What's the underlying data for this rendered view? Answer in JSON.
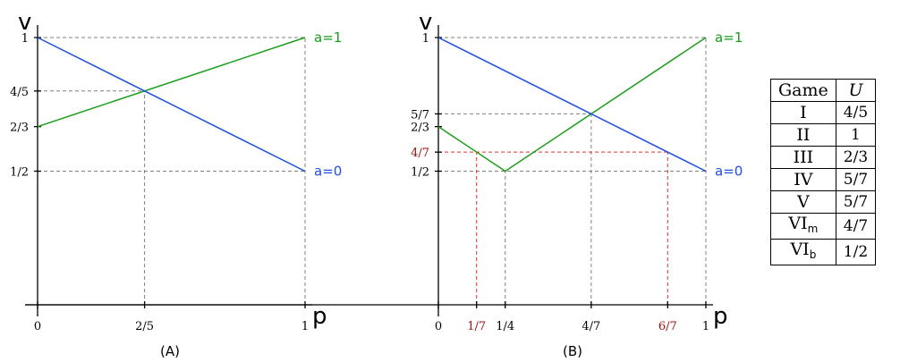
{
  "chart_data": [
    {
      "type": "line",
      "caption": "(A)",
      "xlabel": "p",
      "ylabel": "v",
      "xlim": [
        0,
        1
      ],
      "ylim": [
        0,
        1
      ],
      "xticks": [
        {
          "value": 0,
          "label": "0"
        },
        {
          "value": 0.4,
          "label": "2/5"
        },
        {
          "value": 1,
          "label": "1"
        }
      ],
      "yticks": [
        {
          "value": 1,
          "label": "1"
        },
        {
          "value": 0.8,
          "label": "4/5"
        },
        {
          "value": 0.6667,
          "label": "2/3"
        },
        {
          "value": 0.5,
          "label": "1/2"
        }
      ],
      "series": [
        {
          "name": "a=1",
          "color": "#1a9e1a",
          "points": [
            [
              0,
              0.6667
            ],
            [
              1,
              1
            ]
          ]
        },
        {
          "name": "a=0",
          "color": "#1f4fe0",
          "points": [
            [
              0,
              1
            ],
            [
              1,
              0.5
            ]
          ]
        }
      ],
      "guides": [
        {
          "color": "#808080",
          "points": [
            [
              0,
              1
            ],
            [
              1,
              1
            ]
          ]
        },
        {
          "color": "#808080",
          "points": [
            [
              0,
              0.8
            ],
            [
              0.4,
              0.8
            ]
          ]
        },
        {
          "color": "#808080",
          "points": [
            [
              0,
              0.5
            ],
            [
              1,
              0.5
            ]
          ]
        },
        {
          "color": "#808080",
          "points": [
            [
              0.4,
              0
            ],
            [
              0.4,
              0.8
            ]
          ]
        },
        {
          "color": "#808080",
          "points": [
            [
              1,
              0
            ],
            [
              1,
              1
            ]
          ]
        }
      ]
    },
    {
      "type": "line",
      "caption": "(B)",
      "xlabel": "p",
      "ylabel": "v",
      "xlim": [
        0,
        1
      ],
      "ylim": [
        0,
        1
      ],
      "xticks": [
        {
          "value": 0,
          "label": "0"
        },
        {
          "value": 0.142857,
          "label": "1/7",
          "color": "#a01010"
        },
        {
          "value": 0.25,
          "label": "1/4"
        },
        {
          "value": 0.571429,
          "label": "4/7"
        },
        {
          "value": 0.857143,
          "label": "6/7",
          "color": "#a01010"
        },
        {
          "value": 1,
          "label": "1"
        }
      ],
      "yticks": [
        {
          "value": 1,
          "label": "1"
        },
        {
          "value": 0.714286,
          "label": "5/7"
        },
        {
          "value": 0.6667,
          "label": "2/3"
        },
        {
          "value": 0.571429,
          "label": "4/7",
          "color": "#a01010"
        },
        {
          "value": 0.5,
          "label": "1/2"
        }
      ],
      "series": [
        {
          "name": "a=1",
          "color": "#1a9e1a",
          "points": [
            [
              0,
              0.6667
            ],
            [
              0.25,
              0.5
            ],
            [
              1,
              1
            ]
          ]
        },
        {
          "name": "a=0",
          "color": "#1f4fe0",
          "points": [
            [
              0,
              1
            ],
            [
              1,
              0.5
            ]
          ]
        }
      ],
      "guides": [
        {
          "color": "#808080",
          "points": [
            [
              0,
              1
            ],
            [
              1,
              1
            ]
          ]
        },
        {
          "color": "#808080",
          "points": [
            [
              0,
              0.714286
            ],
            [
              0.571429,
              0.714286
            ]
          ]
        },
        {
          "color": "#808080",
          "points": [
            [
              0,
              0.5
            ],
            [
              1,
              0.5
            ]
          ]
        },
        {
          "color": "#808080",
          "points": [
            [
              0.25,
              0
            ],
            [
              0.25,
              0.5
            ]
          ]
        },
        {
          "color": "#808080",
          "points": [
            [
              0.571429,
              0
            ],
            [
              0.571429,
              0.714286
            ]
          ]
        },
        {
          "color": "#808080",
          "points": [
            [
              1,
              0
            ],
            [
              1,
              1
            ]
          ]
        },
        {
          "color": "#e03030",
          "points": [
            [
              0,
              0.571429
            ],
            [
              0.857143,
              0.571429
            ]
          ]
        },
        {
          "color": "#e03030",
          "points": [
            [
              0.142857,
              0
            ],
            [
              0.142857,
              0.571429
            ]
          ]
        },
        {
          "color": "#e03030",
          "points": [
            [
              0.857143,
              0
            ],
            [
              0.857143,
              0.571429
            ]
          ]
        }
      ]
    }
  ],
  "table": {
    "headers": {
      "game": "Game",
      "utility": "U"
    },
    "rows": [
      {
        "game": "I",
        "sub": "",
        "value": "4/5"
      },
      {
        "game": "II",
        "sub": "",
        "value": "1"
      },
      {
        "game": "III",
        "sub": "",
        "value": "2/3"
      },
      {
        "game": "IV",
        "sub": "",
        "value": "5/7"
      },
      {
        "game": "V",
        "sub": "",
        "value": "5/7"
      },
      {
        "game": "VI",
        "sub": "m",
        "value": "4/7"
      },
      {
        "game": "VI",
        "sub": "b",
        "value": "1/2"
      }
    ]
  }
}
